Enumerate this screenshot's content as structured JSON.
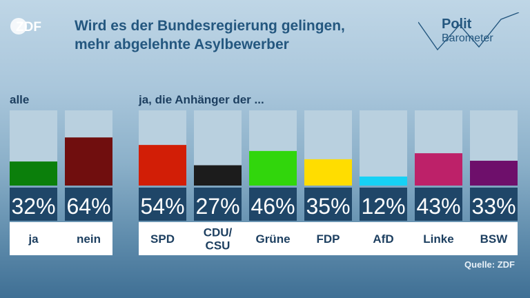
{
  "header": {
    "brand": "ZDF",
    "title_lines": [
      "Wird es der Bundesregierung gelingen,",
      "mehr abgelehnte Asylbewerber"
    ],
    "logo_line1": "Polit",
    "logo_line2": "Barometer"
  },
  "groups": {
    "all_label": "alle",
    "supporters_label": "ja, die Anhänger der ..."
  },
  "source": "Quelle: ZDF",
  "chart_data": {
    "type": "bar",
    "ylim": [
      0,
      100
    ],
    "bars": [
      {
        "category": "ja",
        "value": 32,
        "label": "32%",
        "color": "#0b7f0b"
      },
      {
        "category": "nein",
        "value": 64,
        "label": "64%",
        "color": "#700e0e"
      },
      {
        "category": "SPD",
        "value": 54,
        "label": "54%",
        "color": "#d21e06"
      },
      {
        "category": "CDU/\nCSU",
        "value": 27,
        "label": "27%",
        "color": "#1c1c1c"
      },
      {
        "category": "Grüne",
        "value": 46,
        "label": "46%",
        "color": "#31d60c"
      },
      {
        "category": "FDP",
        "value": 35,
        "label": "35%",
        "color": "#ffdd00"
      },
      {
        "category": "AfD",
        "value": 12,
        "label": "12%",
        "color": "#16d1f5"
      },
      {
        "category": "Linke",
        "value": 43,
        "label": "43%",
        "color": "#bd2169"
      },
      {
        "category": "BSW",
        "value": 33,
        "label": "33%",
        "color": "#6e0f6b"
      }
    ]
  }
}
